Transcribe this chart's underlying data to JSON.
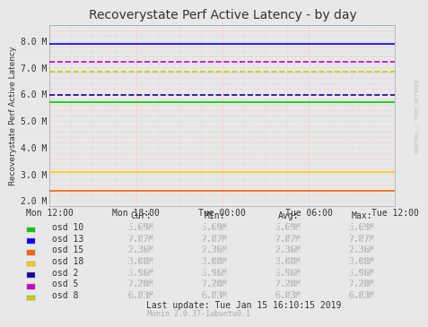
{
  "title": "Recoverystate Perf Active Latency - by day",
  "ylabel": "Recoverystate Perf Active Latency",
  "watermark": "RRDTOOL / TOBI OETIKER",
  "munin_version": "Munin 2.0.37-1ubuntu0.1",
  "last_update": "Last update: Tue Jan 15 16:10:15 2019",
  "x_ticks": [
    "Mon 12:00",
    "Mon 18:00",
    "Tue 00:00",
    "Tue 06:00",
    "Tue 12:00"
  ],
  "ylim": [
    1800000,
    8600000
  ],
  "yticks": [
    2000000,
    3000000,
    4000000,
    5000000,
    6000000,
    7000000,
    8000000
  ],
  "ytick_labels": [
    "2.0 M",
    "3.0 M",
    "4.0 M",
    "5.0 M",
    "6.0 M",
    "7.0 M",
    "8.0 M"
  ],
  "series": [
    {
      "label": "osd 10",
      "color": "#00cc00",
      "value": 5690000,
      "linestyle": "-",
      "linewidth": 1.2
    },
    {
      "label": "osd 13",
      "color": "#0000ff",
      "value": 7870000,
      "linestyle": "-",
      "linewidth": 1.2
    },
    {
      "label": "osd 15",
      "color": "#ff6600",
      "value": 2360000,
      "linestyle": "-",
      "linewidth": 1.2
    },
    {
      "label": "osd 18",
      "color": "#ffcc00",
      "value": 3080000,
      "linestyle": "-",
      "linewidth": 1.2
    },
    {
      "label": "osd 2",
      "color": "#1a0099",
      "value": 5960000,
      "linestyle": "--",
      "linewidth": 1.2
    },
    {
      "label": "osd 5",
      "color": "#cc00cc",
      "value": 7200000,
      "linestyle": "--",
      "linewidth": 1.2
    },
    {
      "label": "osd 8",
      "color": "#cccc00",
      "value": 6830000,
      "linestyle": "--",
      "linewidth": 1.2
    }
  ],
  "legend_data": [
    {
      "label": "osd 10",
      "color": "#00cc00",
      "cur": "5.69M",
      "min": "5.69M",
      "avg": "5.69M",
      "max": "5.69M"
    },
    {
      "label": "osd 13",
      "color": "#0000ff",
      "cur": "7.87M",
      "min": "7.87M",
      "avg": "7.87M",
      "max": "7.87M"
    },
    {
      "label": "osd 15",
      "color": "#ff6600",
      "cur": "2.36M",
      "min": "2.36M",
      "avg": "2.36M",
      "max": "2.36M"
    },
    {
      "label": "osd 18",
      "color": "#ffcc00",
      "cur": "3.08M",
      "min": "3.08M",
      "avg": "3.08M",
      "max": "3.08M"
    },
    {
      "label": "osd 2",
      "color": "#1a0099",
      "cur": "5.96M",
      "min": "5.96M",
      "avg": "5.96M",
      "max": "5.96M"
    },
    {
      "label": "osd 5",
      "color": "#cc00cc",
      "cur": "7.20M",
      "min": "7.20M",
      "avg": "7.20M",
      "max": "7.20M"
    },
    {
      "label": "osd 8",
      "color": "#cccc00",
      "cur": "6.83M",
      "min": "6.83M",
      "avg": "6.83M",
      "max": "6.83M"
    }
  ],
  "bg_color": "#e8e8e8",
  "plot_bg_color": "#e8e8e8",
  "grid_color_pink": "#ffaaaa",
  "grid_color_lavender": "#ccccee",
  "title_fontsize": 10,
  "axis_fontsize": 7,
  "legend_fontsize": 7
}
